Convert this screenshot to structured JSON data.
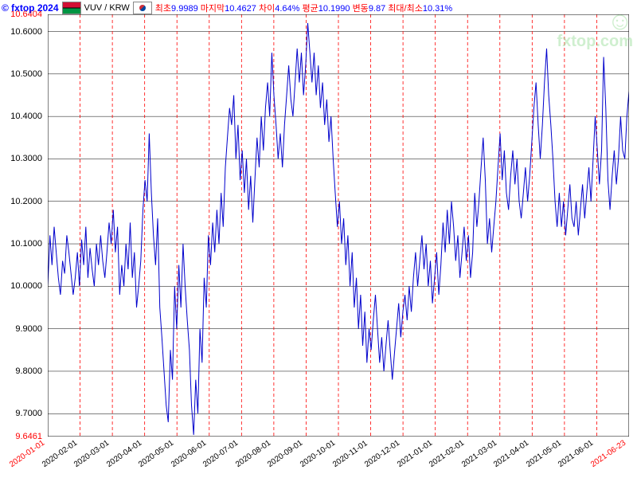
{
  "copyright": "© fxtop 2024",
  "currency_pair": "VUV / KRW",
  "stats": [
    {
      "label": "최초",
      "value": "9.9989"
    },
    {
      "label": "마지막",
      "value": "10.4627"
    },
    {
      "label": "차이",
      "value": "4.64%"
    },
    {
      "label": "평균",
      "value": "10.1990"
    },
    {
      "label": "변동",
      "value": "9.87"
    },
    {
      "label": "최대/최소",
      "value": "10.31%"
    }
  ],
  "watermark_text": "fxtop.com",
  "chart": {
    "type": "line",
    "line_color": "#0000cc",
    "line_width": 1,
    "background_color": "#ffffff",
    "grid_color": "#000000",
    "vline_color": "#ff0000",
    "vline_dash": "4 3",
    "ymin": 9.6461,
    "ymax": 10.6404,
    "y_ticks": [
      9.7,
      9.8,
      9.9,
      10.0,
      10.1,
      10.2,
      10.3,
      10.4,
      10.5,
      10.6
    ],
    "y_min_label": "9.6461",
    "y_max_label": "10.6404",
    "x_labels": [
      "2020-01-01",
      "2020-02-01",
      "2020-03-01",
      "2020-04-01",
      "2020-05-01",
      "2020-06-01",
      "2020-07-01",
      "2020-08-01",
      "2020-09-01",
      "2020-10-01",
      "2020-11-01",
      "2020-12-01",
      "2021-01-01",
      "2021-02-01",
      "2021-03-01",
      "2021-04-01",
      "2021-05-01",
      "2021-06-01",
      "2021-06-23"
    ],
    "x_edge_indices": [
      0,
      18
    ],
    "series": [
      10.0,
      10.12,
      10.05,
      10.14,
      10.08,
      10.02,
      9.98,
      10.06,
      10.03,
      10.12,
      10.08,
      10.03,
      9.98,
      10.02,
      10.08,
      10.0,
      10.11,
      10.05,
      10.14,
      10.02,
      10.09,
      10.04,
      10.0,
      10.1,
      10.05,
      10.12,
      10.06,
      10.02,
      10.08,
      10.15,
      10.1,
      10.18,
      10.08,
      10.14,
      9.98,
      10.05,
      10.0,
      10.1,
      10.04,
      10.15,
      10.02,
      10.08,
      9.95,
      10.0,
      10.06,
      10.18,
      10.25,
      10.2,
      10.36,
      10.22,
      10.12,
      10.05,
      10.16,
      9.95,
      9.88,
      9.8,
      9.72,
      9.68,
      9.85,
      9.78,
      10.0,
      9.9,
      10.05,
      9.95,
      10.1,
      10.0,
      9.92,
      9.85,
      9.72,
      9.65,
      9.78,
      9.7,
      9.9,
      9.82,
      10.02,
      9.95,
      10.12,
      10.05,
      10.15,
      10.08,
      10.18,
      10.1,
      10.22,
      10.14,
      10.28,
      10.35,
      10.42,
      10.38,
      10.45,
      10.3,
      10.38,
      10.25,
      10.32,
      10.22,
      10.3,
      10.18,
      10.26,
      10.15,
      10.25,
      10.35,
      10.28,
      10.4,
      10.32,
      10.42,
      10.48,
      10.4,
      10.55,
      10.45,
      10.38,
      10.3,
      10.36,
      10.28,
      10.38,
      10.45,
      10.52,
      10.44,
      10.4,
      10.48,
      10.56,
      10.48,
      10.55,
      10.45,
      10.52,
      10.62,
      10.55,
      10.48,
      10.55,
      10.45,
      10.52,
      10.42,
      10.48,
      10.38,
      10.44,
      10.34,
      10.4,
      10.3,
      10.22,
      10.14,
      10.2,
      10.1,
      10.16,
      10.05,
      10.12,
      10.0,
      10.08,
      9.95,
      10.02,
      9.9,
      9.98,
      9.86,
      9.94,
      9.82,
      9.9,
      9.85,
      9.92,
      9.98,
      9.9,
      9.82,
      9.88,
      9.8,
      9.86,
      9.92,
      9.85,
      9.78,
      9.84,
      9.9,
      9.96,
      9.88,
      9.94,
      9.98,
      9.92,
      10.0,
      9.94,
      10.02,
      10.08,
      10.0,
      10.06,
      10.12,
      10.04,
      10.1,
      10.0,
      10.06,
      9.96,
      10.02,
      10.08,
      9.98,
      10.05,
      10.15,
      10.08,
      10.18,
      10.1,
      10.2,
      10.14,
      10.06,
      10.12,
      10.02,
      10.08,
      10.14,
      10.06,
      10.12,
      10.02,
      10.08,
      10.22,
      10.14,
      10.2,
      10.28,
      10.35,
      10.25,
      10.1,
      10.16,
      10.08,
      10.14,
      10.2,
      10.28,
      10.36,
      10.25,
      10.32,
      10.22,
      10.18,
      10.26,
      10.32,
      10.24,
      10.3,
      10.2,
      10.16,
      10.22,
      10.28,
      10.2,
      10.26,
      10.34,
      10.42,
      10.48,
      10.38,
      10.3,
      10.38,
      10.48,
      10.56,
      10.45,
      10.38,
      10.3,
      10.2,
      10.14,
      10.22,
      10.14,
      10.2,
      10.12,
      10.18,
      10.24,
      10.16,
      10.14,
      10.2,
      10.12,
      10.18,
      10.24,
      10.16,
      10.22,
      10.28,
      10.2,
      10.3,
      10.4,
      10.32,
      10.24,
      10.32,
      10.54,
      10.42,
      10.25,
      10.18,
      10.26,
      10.32,
      10.24,
      10.3,
      10.4,
      10.32,
      10.3,
      10.4,
      10.46
    ]
  }
}
